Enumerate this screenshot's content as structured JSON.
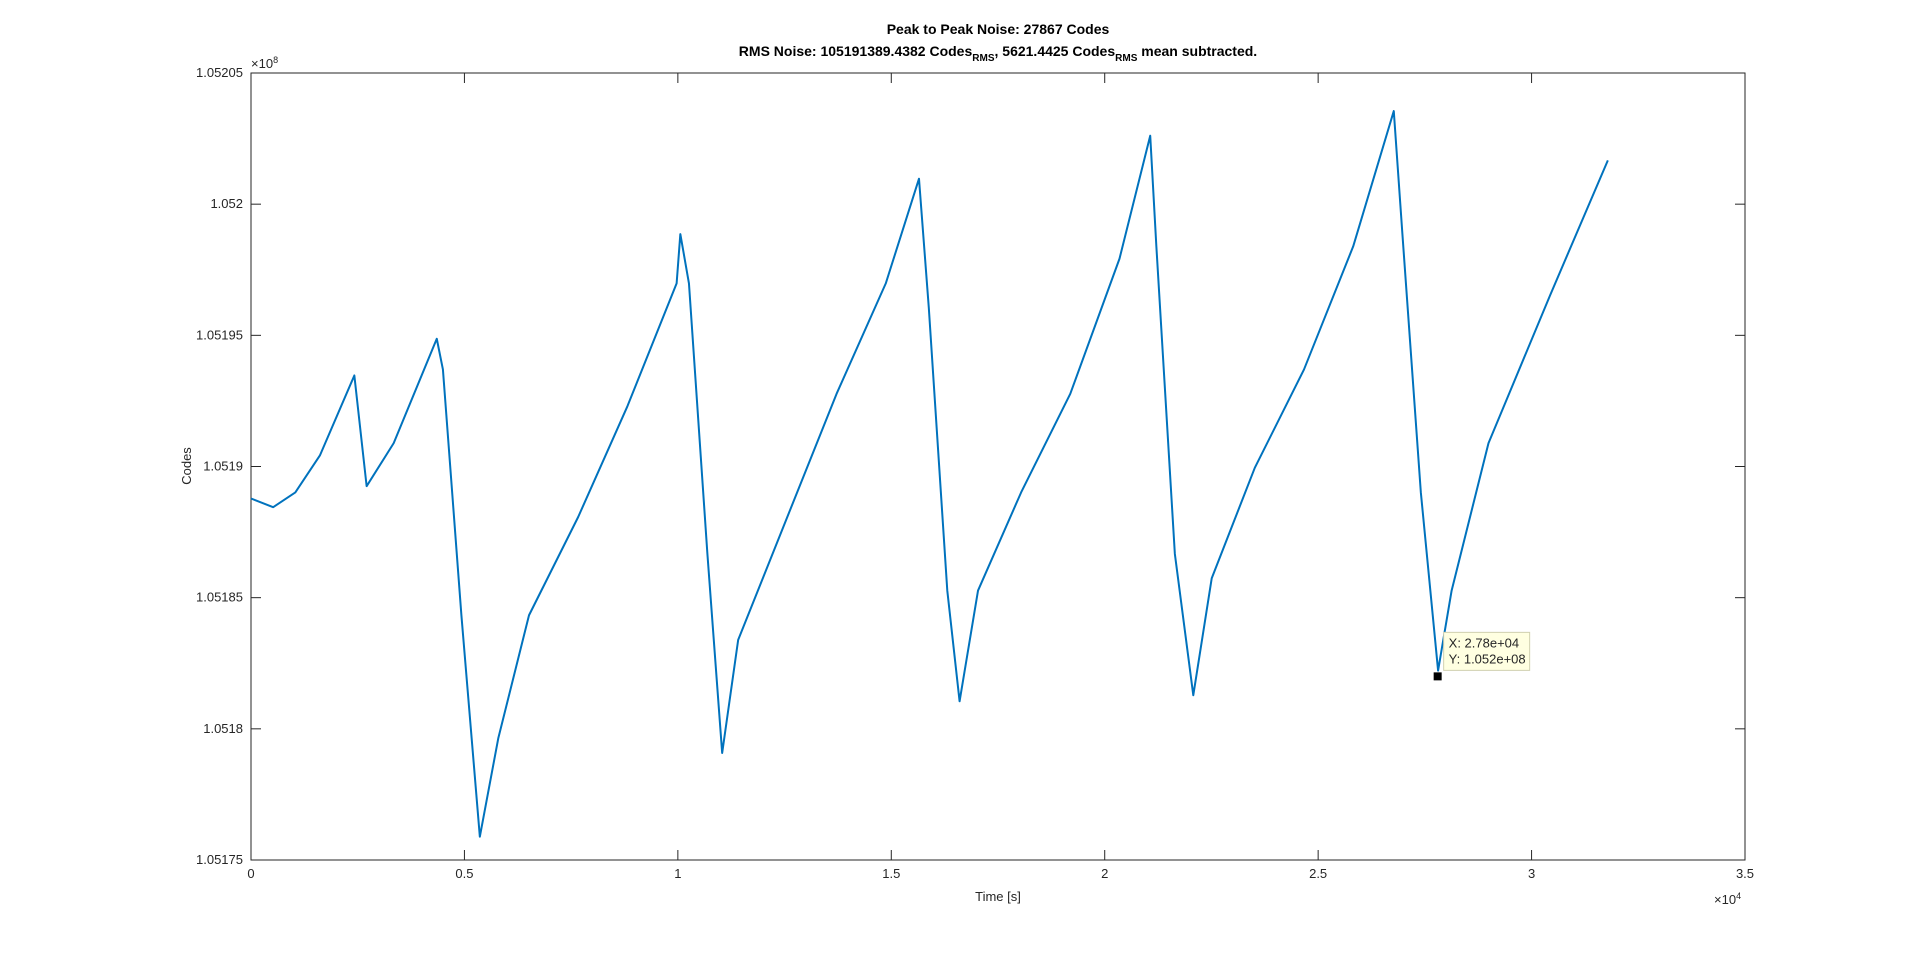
{
  "chart_data": {
    "type": "line",
    "title_line1": "Peak to Peak Noise: 27867 Codes",
    "title_line2_parts": [
      "RMS Noise: 105191389.4382 Codes",
      "RMS",
      ", 5621.4425 Codes",
      "RMS",
      " mean subtracted."
    ],
    "x_label": "Time [s]",
    "y_label": "Codes",
    "x_exponent_base": "×10",
    "x_exponent": "4",
    "y_exponent_base": "×10",
    "y_exponent": "8",
    "xlim": [
      0,
      35000
    ],
    "xticks": [
      0,
      {
        "value": 5000,
        "label": "0.5"
      },
      {
        "value": 10000,
        "label": "1"
      },
      {
        "value": 15000,
        "label": "1.5"
      },
      {
        "value": 20000,
        "label": "2"
      },
      {
        "value": 25000,
        "label": "2.5"
      },
      {
        "value": 30000,
        "label": "3"
      },
      {
        "value": 35000,
        "label": "3.5"
      }
    ],
    "ylim": [
      105175000,
      105205000
    ],
    "yticks": [
      {
        "value": 105175000,
        "label": "1.05175"
      },
      {
        "value": 105180000,
        "label": "1.0518"
      },
      {
        "value": 105185000,
        "label": "1.05185"
      },
      {
        "value": 105190000,
        "label": "1.0519"
      },
      {
        "value": 105195000,
        "label": "1.05195"
      },
      {
        "value": 105200000,
        "label": "1.052"
      },
      {
        "value": 105205000,
        "label": "1.05205"
      }
    ],
    "grid": false,
    "series": [
      {
        "color": "#0072bd",
        "x": [
          0,
          519,
          1038,
          1614,
          2421,
          2709,
          3343,
          4352,
          4496,
          4929,
          5361,
          5793,
          6513,
          7666,
          8819,
          9971,
          10058,
          10260,
          10692,
          11038,
          11413,
          12565,
          13718,
          14871,
          15649,
          15879,
          16312,
          16600,
          17032,
          18041,
          19193,
          20346,
          21066,
          21210,
          21643,
          22075,
          22507,
          23516,
          24669,
          25821,
          26772,
          26974,
          27406,
          27810,
          28127,
          28991,
          30432,
          31787
        ],
        "values": [
          105188780,
          105188450,
          105189010,
          105190420,
          105193470,
          105189250,
          105190890,
          105194870,
          105193700,
          105184330,
          105175890,
          105179640,
          105184330,
          105188080,
          105192300,
          105196980,
          105198860,
          105196980,
          105186670,
          105179080,
          105183390,
          105188080,
          105192770,
          105196980,
          105200970,
          105196050,
          105185270,
          105181050,
          105185270,
          105189010,
          105192770,
          105197920,
          105202610,
          105198390,
          105186670,
          105181280,
          105185740,
          105189950,
          105193700,
          105198390,
          105203550,
          105198860,
          105189010,
          105182220,
          105185270,
          105190890,
          105196520,
          105201670
        ]
      }
    ],
    "datatip": {
      "x": 27800,
      "y": 105182000,
      "x_text": "X: 2.78e+04",
      "y_text": "Y: 1.052e+08"
    }
  }
}
